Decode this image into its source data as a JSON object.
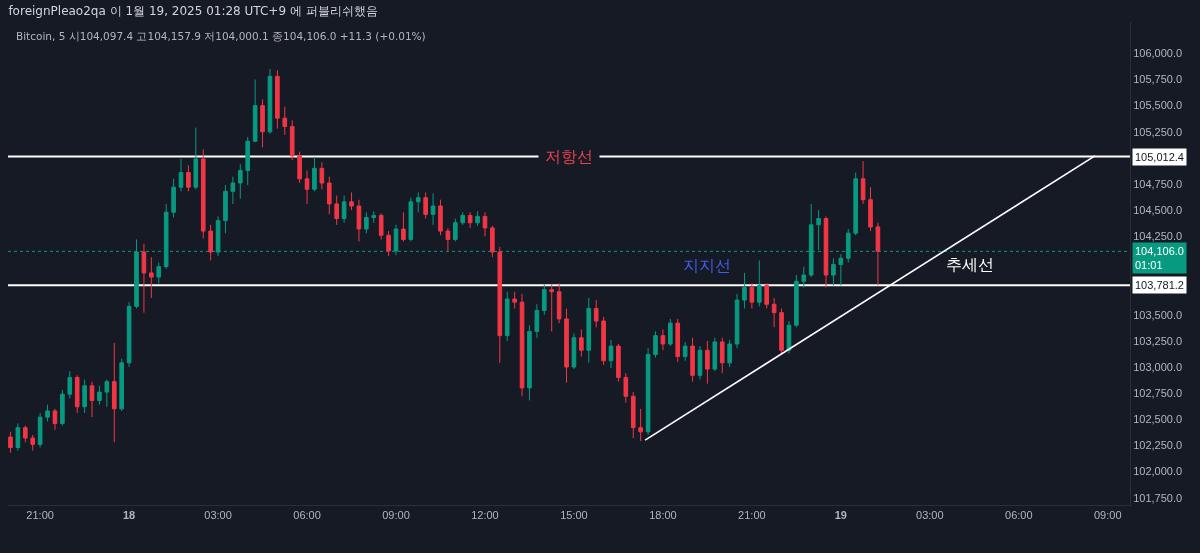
{
  "chart_data": {
    "type": "candlestick",
    "title": "foreignPleao2qa 이 1월 19, 2025 01:28 UTC+9 에 퍼블리쉬했음",
    "subtitle": "Bitcoin, 5 시104,097.4 고104,157.9 저104,000.1 종104,106.0 +11.3 (+0.01%)",
    "xlim": [
      "2025-01-17T19:55",
      "2025-01-19T09:45"
    ],
    "ylim": [
      101680,
      106300
    ],
    "xticks": [
      {
        "value": "2025-01-17T21:00",
        "label": "21:00"
      },
      {
        "value": "2025-01-18T00:00",
        "label": "18"
      },
      {
        "value": "2025-01-18T03:00",
        "label": "03:00"
      },
      {
        "value": "2025-01-18T06:00",
        "label": "06:00"
      },
      {
        "value": "2025-01-18T09:00",
        "label": "09:00"
      },
      {
        "value": "2025-01-18T12:00",
        "label": "12:00"
      },
      {
        "value": "2025-01-18T15:00",
        "label": "15:00"
      },
      {
        "value": "2025-01-18T18:00",
        "label": "18:00"
      },
      {
        "value": "2025-01-18T21:00",
        "label": "21:00"
      },
      {
        "value": "2025-01-19T00:00",
        "label": "19"
      },
      {
        "value": "2025-01-19T03:00",
        "label": "03:00"
      },
      {
        "value": "2025-01-19T06:00",
        "label": "06:00"
      },
      {
        "value": "2025-01-19T09:00",
        "label": "09:00"
      }
    ],
    "yticks": [
      {
        "value": 106000,
        "label": "106,000.0"
      },
      {
        "value": 105750,
        "label": "105,750.0"
      },
      {
        "value": 105500,
        "label": "105,500.0"
      },
      {
        "value": 105250,
        "label": "105,250.0"
      },
      {
        "value": 104750,
        "label": "104,750.0"
      },
      {
        "value": 104500,
        "label": "104,500.0"
      },
      {
        "value": 104250,
        "label": "104,250.0"
      },
      {
        "value": 103500,
        "label": "103,500.0"
      },
      {
        "value": 103250,
        "label": "103,250.0"
      },
      {
        "value": 103000,
        "label": "103,000.0"
      },
      {
        "value": 102750,
        "label": "102,750.0"
      },
      {
        "value": 102500,
        "label": "102,500.0"
      },
      {
        "value": 102250,
        "label": "102,250.0"
      },
      {
        "value": 102000,
        "label": "102,000.0"
      },
      {
        "value": 101750,
        "label": "101,750.0"
      }
    ],
    "series": [
      {
        "type": "line",
        "color": "#ffffff",
        "line_style": "solid",
        "x": [
          "2025-01-18T17:24",
          "2025-01-19T08:34"
        ],
        "values": [
          102300,
          105020
        ]
      },
      {
        "x": [
          "2025-01-17T20:00",
          "2025-01-17T20:15",
          "2025-01-17T20:30",
          "2025-01-17T20:45",
          "2025-01-17T21:00",
          "2025-01-17T21:15",
          "2025-01-17T21:30",
          "2025-01-17T21:45",
          "2025-01-17T22:00",
          "2025-01-17T22:15",
          "2025-01-17T22:30",
          "2025-01-17T22:45",
          "2025-01-17T23:00",
          "2025-01-17T23:15",
          "2025-01-17T23:30",
          "2025-01-17T23:45",
          "2025-01-18T00:00",
          "2025-01-18T00:15",
          "2025-01-18T00:30",
          "2025-01-18T00:45",
          "2025-01-18T01:00",
          "2025-01-18T01:15",
          "2025-01-18T01:30",
          "2025-01-18T01:45",
          "2025-01-18T02:00",
          "2025-01-18T02:15",
          "2025-01-18T02:30",
          "2025-01-18T02:45",
          "2025-01-18T03:00",
          "2025-01-18T03:15",
          "2025-01-18T03:30",
          "2025-01-18T03:45",
          "2025-01-18T04:00",
          "2025-01-18T04:15",
          "2025-01-18T04:30",
          "2025-01-18T04:45",
          "2025-01-18T05:00",
          "2025-01-18T05:15",
          "2025-01-18T05:30",
          "2025-01-18T05:45",
          "2025-01-18T06:00",
          "2025-01-18T06:15",
          "2025-01-18T06:30",
          "2025-01-18T06:45",
          "2025-01-18T07:00",
          "2025-01-18T07:15",
          "2025-01-18T07:30",
          "2025-01-18T07:45",
          "2025-01-18T08:00",
          "2025-01-18T08:15",
          "2025-01-18T08:30",
          "2025-01-18T08:45",
          "2025-01-18T09:00",
          "2025-01-18T09:15",
          "2025-01-18T09:30",
          "2025-01-18T09:45",
          "2025-01-18T10:00",
          "2025-01-18T10:15",
          "2025-01-18T10:30",
          "2025-01-18T10:45",
          "2025-01-18T11:00",
          "2025-01-18T11:15",
          "2025-01-18T11:30",
          "2025-01-18T11:45",
          "2025-01-18T12:00",
          "2025-01-18T12:15",
          "2025-01-18T12:30",
          "2025-01-18T12:45",
          "2025-01-18T13:00",
          "2025-01-18T13:15",
          "2025-01-18T13:30",
          "2025-01-18T13:45",
          "2025-01-18T14:00",
          "2025-01-18T14:15",
          "2025-01-18T14:30",
          "2025-01-18T14:45",
          "2025-01-18T15:00",
          "2025-01-18T15:15",
          "2025-01-18T15:30",
          "2025-01-18T15:45",
          "2025-01-18T16:00",
          "2025-01-18T16:15",
          "2025-01-18T16:30",
          "2025-01-18T16:45",
          "2025-01-18T17:00",
          "2025-01-18T17:15",
          "2025-01-18T17:30",
          "2025-01-18T17:45",
          "2025-01-18T18:00",
          "2025-01-18T18:15",
          "2025-01-18T18:30",
          "2025-01-18T18:45",
          "2025-01-18T19:00",
          "2025-01-18T19:15",
          "2025-01-18T19:30",
          "2025-01-18T19:45",
          "2025-01-18T20:00",
          "2025-01-18T20:15",
          "2025-01-18T20:30",
          "2025-01-18T20:45",
          "2025-01-18T21:00",
          "2025-01-18T21:15",
          "2025-01-18T21:30",
          "2025-01-18T21:45",
          "2025-01-18T22:00",
          "2025-01-18T22:15",
          "2025-01-18T22:30",
          "2025-01-18T22:45",
          "2025-01-18T23:00",
          "2025-01-18T23:15",
          "2025-01-18T23:30",
          "2025-01-18T23:45",
          "2025-01-19T00:00",
          "2025-01-19T00:15",
          "2025-01-19T00:30",
          "2025-01-19T00:45",
          "2025-01-19T01:00",
          "2025-01-19T01:15"
        ],
        "ohlc": [
          [
            102330,
            102380,
            102180,
            102230
          ],
          [
            102230,
            102460,
            102200,
            102420
          ],
          [
            102420,
            102440,
            102280,
            102320
          ],
          [
            102320,
            102350,
            102200,
            102260
          ],
          [
            102260,
            102560,
            102230,
            102520
          ],
          [
            102520,
            102640,
            102480,
            102580
          ],
          [
            102580,
            102600,
            102400,
            102460
          ],
          [
            102460,
            102780,
            102440,
            102740
          ],
          [
            102740,
            102960,
            102700,
            102900
          ],
          [
            102900,
            102920,
            102560,
            102620
          ],
          [
            102620,
            102880,
            102560,
            102820
          ],
          [
            102820,
            102860,
            102520,
            102680
          ],
          [
            102680,
            102820,
            102640,
            102760
          ],
          [
            102760,
            102880,
            102620,
            102860
          ],
          [
            102860,
            103230,
            102280,
            102600
          ],
          [
            102600,
            103080,
            102580,
            103040
          ],
          [
            103040,
            103620,
            103000,
            103580
          ],
          [
            103580,
            104220,
            103560,
            104100
          ],
          [
            104100,
            104180,
            103520,
            103900
          ],
          [
            103900,
            104050,
            103660,
            103860
          ],
          [
            103860,
            104000,
            103800,
            103960
          ],
          [
            103960,
            104560,
            103940,
            104480
          ],
          [
            104480,
            104800,
            104430,
            104720
          ],
          [
            104720,
            104990,
            104680,
            104860
          ],
          [
            104860,
            104930,
            104680,
            104720
          ],
          [
            104720,
            105290,
            104700,
            104990
          ],
          [
            104990,
            105080,
            104230,
            104300
          ],
          [
            104300,
            104360,
            104020,
            104100
          ],
          [
            104100,
            104440,
            104060,
            104400
          ],
          [
            104400,
            104740,
            104280,
            104680
          ],
          [
            104680,
            104820,
            104560,
            104760
          ],
          [
            104760,
            104940,
            104610,
            104880
          ],
          [
            104880,
            105200,
            104740,
            105160
          ],
          [
            105160,
            105750,
            105150,
            105500
          ],
          [
            105500,
            105560,
            105100,
            105250
          ],
          [
            105250,
            105850,
            105230,
            105780
          ],
          [
            105780,
            105840,
            105280,
            105380
          ],
          [
            105380,
            105490,
            105220,
            105300
          ],
          [
            105300,
            105360,
            104980,
            105020
          ],
          [
            105020,
            105060,
            104760,
            104800
          ],
          [
            104800,
            104880,
            104560,
            104700
          ],
          [
            104700,
            105010,
            104680,
            104900
          ],
          [
            104900,
            104960,
            104700,
            104760
          ],
          [
            104760,
            104820,
            104460,
            104560
          ],
          [
            104560,
            104640,
            104360,
            104420
          ],
          [
            104420,
            104640,
            104380,
            104580
          ],
          [
            104580,
            104670,
            104500,
            104540
          ],
          [
            104540,
            104600,
            104200,
            104320
          ],
          [
            104320,
            104480,
            104280,
            104430
          ],
          [
            104430,
            104490,
            104380,
            104450
          ],
          [
            104450,
            104470,
            104220,
            104260
          ],
          [
            104260,
            104300,
            104060,
            104110
          ],
          [
            104110,
            104360,
            104070,
            104320
          ],
          [
            104320,
            104480,
            104200,
            104220
          ],
          [
            104220,
            104620,
            104200,
            104580
          ],
          [
            104580,
            104670,
            104480,
            104620
          ],
          [
            104620,
            104670,
            104420,
            104460
          ],
          [
            104460,
            104660,
            104360,
            104540
          ],
          [
            104540,
            104600,
            104260,
            104300
          ],
          [
            104300,
            104330,
            104110,
            104220
          ],
          [
            104220,
            104420,
            104200,
            104380
          ],
          [
            104380,
            104480,
            104360,
            104450
          ],
          [
            104450,
            104480,
            104330,
            104380
          ],
          [
            104380,
            104490,
            104350,
            104440
          ],
          [
            104440,
            104480,
            104250,
            104330
          ],
          [
            104330,
            104350,
            104050,
            104100
          ],
          [
            104100,
            104150,
            103040,
            103300
          ],
          [
            103300,
            103720,
            103250,
            103650
          ],
          [
            103650,
            103720,
            103560,
            103620
          ],
          [
            103620,
            103700,
            102720,
            102800
          ],
          [
            102800,
            103400,
            102680,
            103340
          ],
          [
            103340,
            103600,
            103280,
            103540
          ],
          [
            103540,
            103790,
            103500,
            103740
          ],
          [
            103740,
            103790,
            103340,
            103720
          ],
          [
            103720,
            103800,
            103420,
            103460
          ],
          [
            103460,
            103560,
            102850,
            103000
          ],
          [
            103000,
            103320,
            102980,
            103280
          ],
          [
            103280,
            103360,
            103100,
            103160
          ],
          [
            103160,
            103660,
            103040,
            103560
          ],
          [
            103560,
            103640,
            103380,
            103440
          ],
          [
            103440,
            103480,
            103020,
            103060
          ],
          [
            103060,
            103260,
            102990,
            103200
          ],
          [
            103200,
            103220,
            102860,
            102900
          ],
          [
            102900,
            102940,
            102660,
            102720
          ],
          [
            102720,
            102760,
            102320,
            102420
          ],
          [
            102420,
            102600,
            102290,
            102380
          ],
          [
            102380,
            103180,
            102350,
            103120
          ],
          [
            103120,
            103340,
            103090,
            103300
          ],
          [
            103300,
            103360,
            103160,
            103220
          ],
          [
            103220,
            103460,
            103200,
            103420
          ],
          [
            103420,
            103460,
            103050,
            103100
          ],
          [
            103100,
            103240,
            103060,
            103200
          ],
          [
            103200,
            103280,
            102860,
            102920
          ],
          [
            102920,
            103200,
            102880,
            103160
          ],
          [
            103160,
            103250,
            102840,
            102980
          ],
          [
            102980,
            103280,
            102960,
            103240
          ],
          [
            103240,
            103280,
            102940,
            103040
          ],
          [
            103040,
            103260,
            103000,
            103220
          ],
          [
            103220,
            103700,
            103180,
            103640
          ],
          [
            103640,
            103900,
            103560,
            103760
          ],
          [
            103760,
            103800,
            103560,
            103620
          ],
          [
            103620,
            104020,
            103580,
            103780
          ],
          [
            103780,
            103800,
            103560,
            103600
          ],
          [
            103600,
            103660,
            103380,
            103520
          ],
          [
            103520,
            103560,
            103120,
            103160
          ],
          [
            103160,
            103440,
            103130,
            103400
          ],
          [
            103400,
            103880,
            103380,
            103820
          ],
          [
            103820,
            103960,
            103760,
            103880
          ],
          [
            103880,
            104560,
            103860,
            104360
          ],
          [
            104360,
            104500,
            104120,
            104420
          ],
          [
            104420,
            104440,
            103760,
            103880
          ],
          [
            103880,
            104040,
            103780,
            103980
          ],
          [
            103980,
            104080,
            103780,
            104040
          ],
          [
            104040,
            104320,
            104000,
            104280
          ],
          [
            104280,
            104860,
            104260,
            104800
          ],
          [
            104800,
            104970,
            104560,
            104600
          ],
          [
            104600,
            104720,
            104300,
            104340
          ],
          [
            104340,
            104380,
            103780,
            104106.0
          ]
        ],
        "colors": [
          "#f23645",
          "#089981",
          "#f23645",
          "#f23645",
          "#089981",
          "#089981",
          "#f23645",
          "#089981",
          "#089981",
          "#f23645",
          "#089981",
          "#f23645",
          "#089981",
          "#089981",
          "#f23645",
          "#089981",
          "#089981",
          "#089981",
          "#f23645",
          "#f23645",
          "#089981",
          "#089981",
          "#089981",
          "#089981",
          "#f23645",
          "#089981",
          "#f23645",
          "#f23645",
          "#089981",
          "#089981",
          "#089981",
          "#089981",
          "#089981",
          "#089981",
          "#f23645",
          "#089981",
          "#f23645",
          "#f23645",
          "#f23645",
          "#f23645",
          "#f23645",
          "#089981",
          "#f23645",
          "#f23645",
          "#f23645",
          "#089981",
          "#f23645",
          "#f23645",
          "#089981",
          "#089981",
          "#f23645",
          "#f23645",
          "#089981",
          "#f23645",
          "#089981",
          "#089981",
          "#f23645",
          "#089981",
          "#f23645",
          "#f23645",
          "#089981",
          "#089981",
          "#f23645",
          "#089981",
          "#f23645",
          "#f23645",
          "#f23645",
          "#089981",
          "#f23645",
          "#f23645",
          "#089981",
          "#089981",
          "#089981",
          "#f23645",
          "#f23645",
          "#f23645",
          "#089981",
          "#f23645",
          "#089981",
          "#f23645",
          "#f23645",
          "#089981",
          "#f23645",
          "#f23645",
          "#f23645",
          "#f23645",
          "#089981",
          "#089981",
          "#f23645",
          "#089981",
          "#f23645",
          "#089981",
          "#f23645",
          "#089981",
          "#f23645",
          "#089981",
          "#f23645",
          "#089981",
          "#089981",
          "#089981",
          "#f23645",
          "#089981",
          "#f23645",
          "#f23645",
          "#f23645",
          "#089981",
          "#089981",
          "#089981",
          "#089981",
          "#089981",
          "#f23645",
          "#089981",
          "#089981",
          "#089981",
          "#089981",
          "#f23645",
          "#f23645",
          "#f23645"
        ]
      }
    ],
    "ref_lines": [
      {
        "axis": "y",
        "value": 105012.4,
        "label": "105,012.4",
        "color": "#ffffff",
        "line_style": "solid"
      },
      {
        "axis": "y",
        "value": 104106.0,
        "label": "104,106.0\n01:01",
        "color": "#089981",
        "line_style": "dotted"
      },
      {
        "axis": "y",
        "value": 103781.2,
        "label": "103,781.2",
        "color": "#ffffff",
        "line_style": "solid"
      }
    ],
    "annotations": [
      {
        "text": "저항선",
        "x": "2025-01-18T14:50",
        "y": 105012.4
      },
      {
        "text": "지지선",
        "x": "2025-01-18T19:30",
        "y": 103781.2
      },
      "추세선"
    ]
  }
}
